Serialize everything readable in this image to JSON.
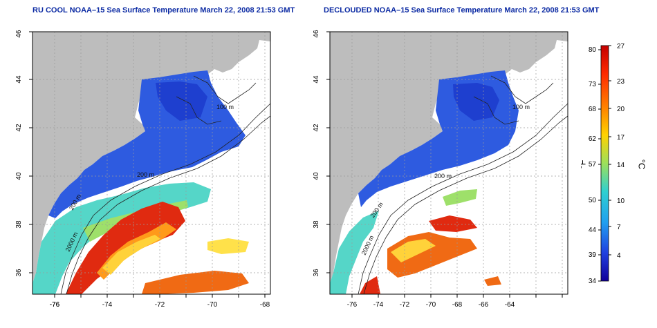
{
  "panels": [
    {
      "title": "RU COOL NOAA–15 Sea Surface Temperature March 22, 2008 21:53 GMT",
      "contours": [
        {
          "label": "100 m"
        },
        {
          "label": "200 m"
        },
        {
          "label": "200 m"
        },
        {
          "label": "2000 m"
        }
      ]
    },
    {
      "title": "DECLOUDED NOAA–15 Sea Surface Temperature March 22, 2008 21:53 GMT",
      "contours": [
        {
          "label": "100 m"
        },
        {
          "label": "200 m"
        },
        {
          "label": "200 m"
        },
        {
          "label": "2000 m"
        }
      ]
    }
  ],
  "axes": {
    "lon_ticks": [
      "-76",
      "-74",
      "-72",
      "-70",
      "-68",
      "-66",
      "-64"
    ],
    "lat_ticks": [
      "36",
      "38",
      "40",
      "42",
      "44",
      "46"
    ]
  },
  "colorbar": {
    "fahrenheit_label": "°F",
    "celsius_label": "°C",
    "fahrenheit_ticks": [
      "80",
      "73",
      "68",
      "62",
      "57",
      "50",
      "44",
      "39",
      "34"
    ],
    "celsius_ticks": [
      "27",
      "23",
      "20",
      "17",
      "14",
      "10",
      "7",
      "4"
    ]
  },
  "colors": {
    "land": "#bdbdbd",
    "cold": "#2e5be0",
    "warm": "#e02a10",
    "title": "#0b2aa3"
  }
}
